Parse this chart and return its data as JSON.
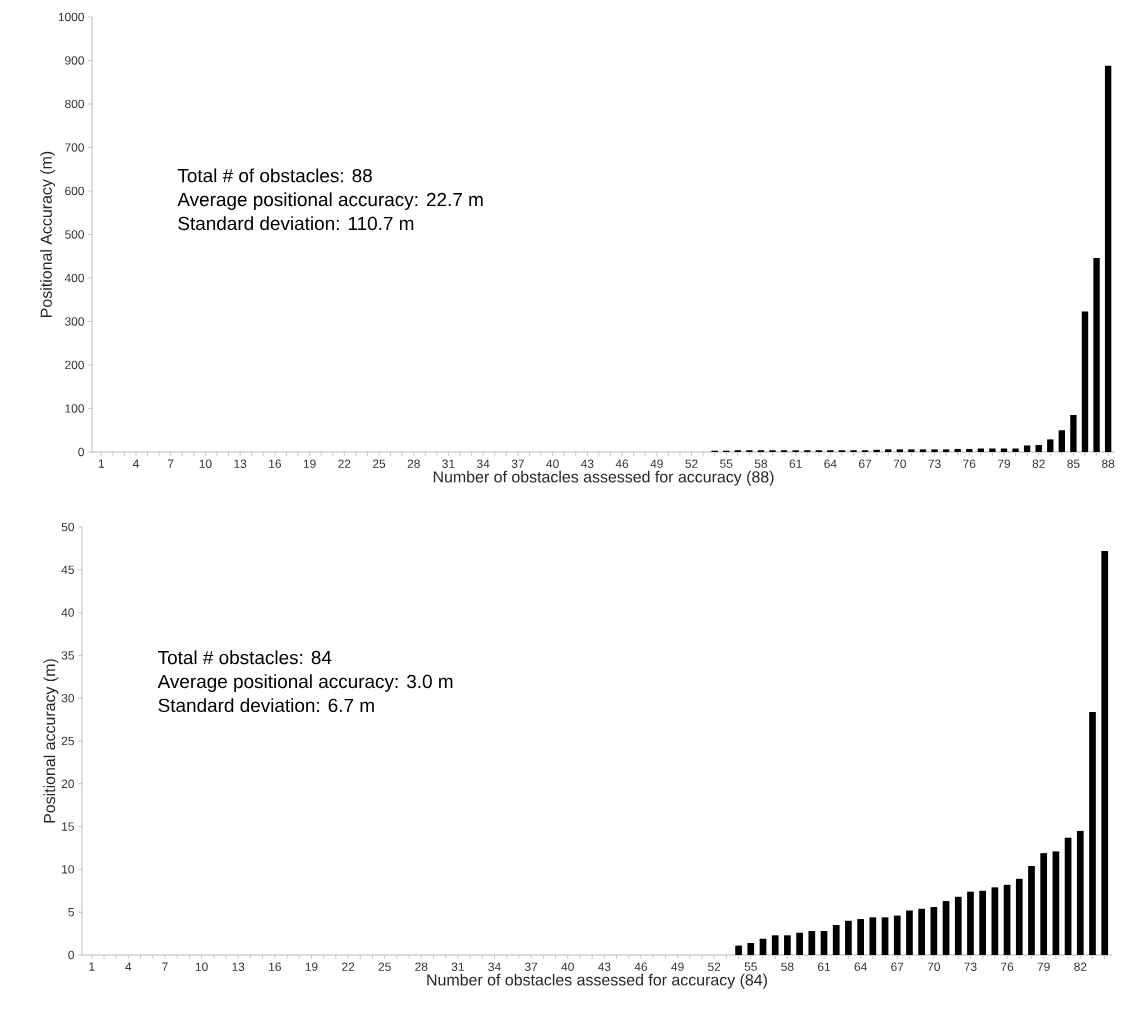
{
  "chart_data": [
    {
      "type": "bar",
      "xlabel": "Number of obstacles assessed for accuracy (88)",
      "ylabel": "Positional Accuracy (m)",
      "annotations": [
        "Total # of obstacles: 88",
        "Average positional accuracy: 22.7 m",
        "Standard deviation: 110.7 m"
      ],
      "categories": [
        "1",
        null,
        null,
        "4",
        null,
        null,
        "7",
        null,
        null,
        "10",
        null,
        null,
        "13",
        null,
        null,
        "16",
        null,
        null,
        "19",
        null,
        null,
        "22",
        null,
        null,
        "25",
        null,
        null,
        "28",
        null,
        null,
        "31",
        null,
        null,
        "34",
        null,
        null,
        "37",
        null,
        null,
        "40",
        null,
        null,
        "43",
        null,
        null,
        "46",
        null,
        null,
        "49",
        null,
        null,
        "52",
        null,
        null,
        "55",
        null,
        null,
        "58",
        null,
        null,
        "61",
        null,
        null,
        "64",
        null,
        null,
        "67",
        null,
        null,
        "70",
        null,
        null,
        "73",
        null,
        null,
        "76",
        null,
        null,
        "79",
        null,
        null,
        "82",
        null,
        null,
        "85",
        null,
        null,
        "88"
      ],
      "values": [
        0,
        0,
        0,
        0,
        0,
        0,
        0,
        0,
        0,
        0,
        0,
        0,
        0,
        0,
        0,
        0,
        0,
        0,
        0,
        0,
        0,
        0,
        0,
        0,
        0,
        0,
        0,
        0,
        0,
        0,
        0,
        0,
        0,
        0,
        0,
        0,
        0,
        0,
        0,
        0,
        0,
        0,
        0,
        0,
        0,
        0,
        0,
        0,
        0,
        0,
        0,
        0,
        0,
        3,
        3,
        4,
        4,
        4,
        4,
        4,
        4,
        4,
        4,
        4,
        4,
        4,
        4,
        5,
        6,
        6,
        6,
        6,
        6,
        6,
        7,
        7,
        8,
        8,
        8,
        8,
        15,
        16,
        29,
        50,
        85,
        323,
        446,
        888
      ],
      "color": "#000000",
      "ylim": [
        0,
        1000
      ],
      "yticks": [
        0,
        100,
        200,
        300,
        400,
        500,
        600,
        700,
        800,
        900,
        1000
      ]
    },
    {
      "type": "bar",
      "xlabel": "Number of obstacles assessed for accuracy (84)",
      "ylabel": "Positional accuracy (m)",
      "annotations": [
        "Total # obstacles: 84",
        "Average positional accuracy: 3.0 m",
        "Standard deviation: 6.7 m"
      ],
      "categories": [
        "1",
        null,
        null,
        "4",
        null,
        null,
        "7",
        null,
        null,
        "10",
        null,
        null,
        "13",
        null,
        null,
        "16",
        null,
        null,
        "19",
        null,
        null,
        "22",
        null,
        null,
        "25",
        null,
        null,
        "28",
        null,
        null,
        "31",
        null,
        null,
        "34",
        null,
        null,
        "37",
        null,
        null,
        "40",
        null,
        null,
        "43",
        null,
        null,
        "46",
        null,
        null,
        "49",
        null,
        null,
        "52",
        null,
        null,
        "55",
        null,
        null,
        "58",
        null,
        null,
        "61",
        null,
        null,
        "64",
        null,
        null,
        "67",
        null,
        null,
        "70",
        null,
        null,
        "73",
        null,
        null,
        "76",
        null,
        null,
        "79",
        null,
        null,
        "82",
        null,
        null
      ],
      "values": [
        0,
        0,
        0,
        0,
        0,
        0,
        0,
        0,
        0,
        0,
        0,
        0,
        0,
        0,
        0,
        0,
        0,
        0,
        0,
        0,
        0,
        0,
        0,
        0,
        0,
        0,
        0,
        0,
        0,
        0,
        0,
        0,
        0,
        0,
        0,
        0,
        0,
        0,
        0,
        0,
        0,
        0,
        0,
        0,
        0,
        0,
        0,
        0,
        0,
        0,
        0,
        0,
        0,
        1.1,
        1.4,
        1.9,
        2.3,
        2.3,
        2.6,
        2.8,
        2.8,
        3.5,
        4.0,
        4.2,
        4.4,
        4.4,
        4.6,
        5.2,
        5.4,
        5.6,
        6.3,
        6.8,
        7.4,
        7.5,
        7.9,
        8.2,
        8.9,
        10.4,
        11.9,
        12.1,
        13.7,
        14.5,
        28.4,
        47.2
      ],
      "color": "#000000",
      "ylim": [
        0,
        50
      ],
      "yticks": [
        0,
        5,
        10,
        15,
        20,
        25,
        30,
        35,
        40,
        45,
        50
      ]
    }
  ]
}
